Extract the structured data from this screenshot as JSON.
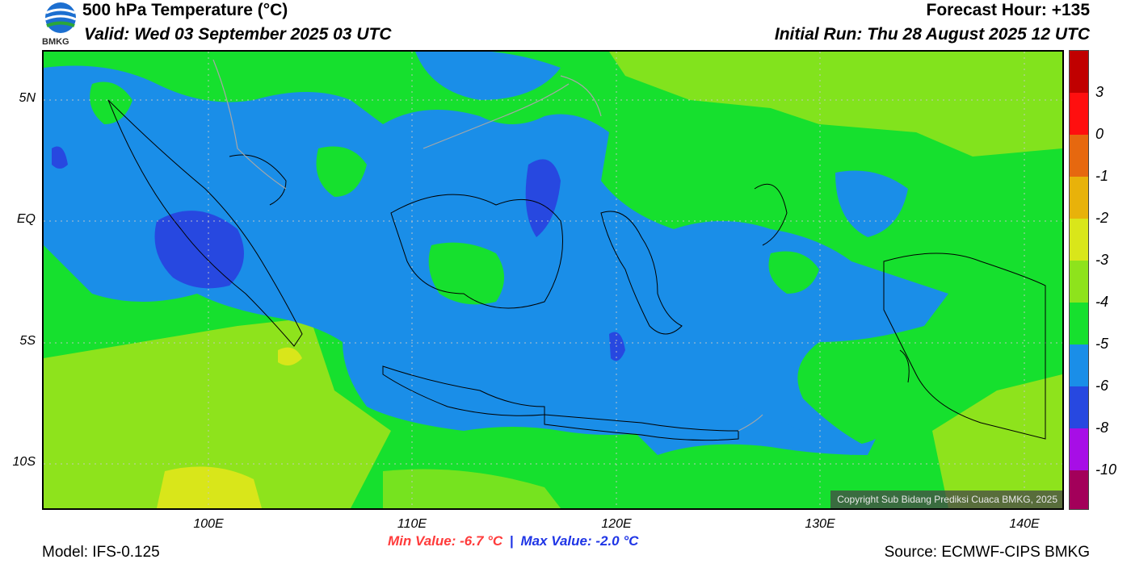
{
  "header": {
    "title": "500 hPa Temperature (°C)",
    "valid": "Valid: Wed 03 September 2025 03 UTC",
    "forecast_hour": "Forecast Hour: +135",
    "initial_run": "Initial Run: Thu 28 August 2025 12 UTC",
    "logo_text": "BMKG"
  },
  "map": {
    "lat_labels": [
      "5N",
      "EQ",
      "5S",
      "10S"
    ],
    "lon_labels": [
      "100E",
      "110E",
      "120E",
      "130E",
      "140E"
    ],
    "grid": true,
    "copyright": "Copyright Sub Bidang Prediksi Cuaca BMKG, 2025"
  },
  "stats": {
    "min_value": "Min Value: -6.7 °C",
    "separator": "|",
    "max_value": "Max Value: -2.0 °C"
  },
  "footer": {
    "model": "Model: IFS-0.125",
    "source": "Source: ECMWF-CIPS BMKG"
  },
  "colorbar": {
    "labels": [
      "3",
      "0",
      "-1",
      "-2",
      "-3",
      "-4",
      "-5",
      "-6",
      "-8",
      "-10"
    ],
    "colors": [
      "#c00000",
      "#ff0f0f",
      "#ff1f1f",
      "#e6680f",
      "#e8b20a",
      "#d9e61a",
      "#8ee31c",
      "#16e02e",
      "#1a8ee8",
      "#2748e0",
      "#a70ee6",
      "#a3005a"
    ]
  },
  "palette": {
    "green": "#16e02e",
    "light_green": "#8ee31c",
    "yellow_green": "#d9e61a",
    "blue": "#1a8ee8",
    "dark_blue": "#2748e0"
  }
}
